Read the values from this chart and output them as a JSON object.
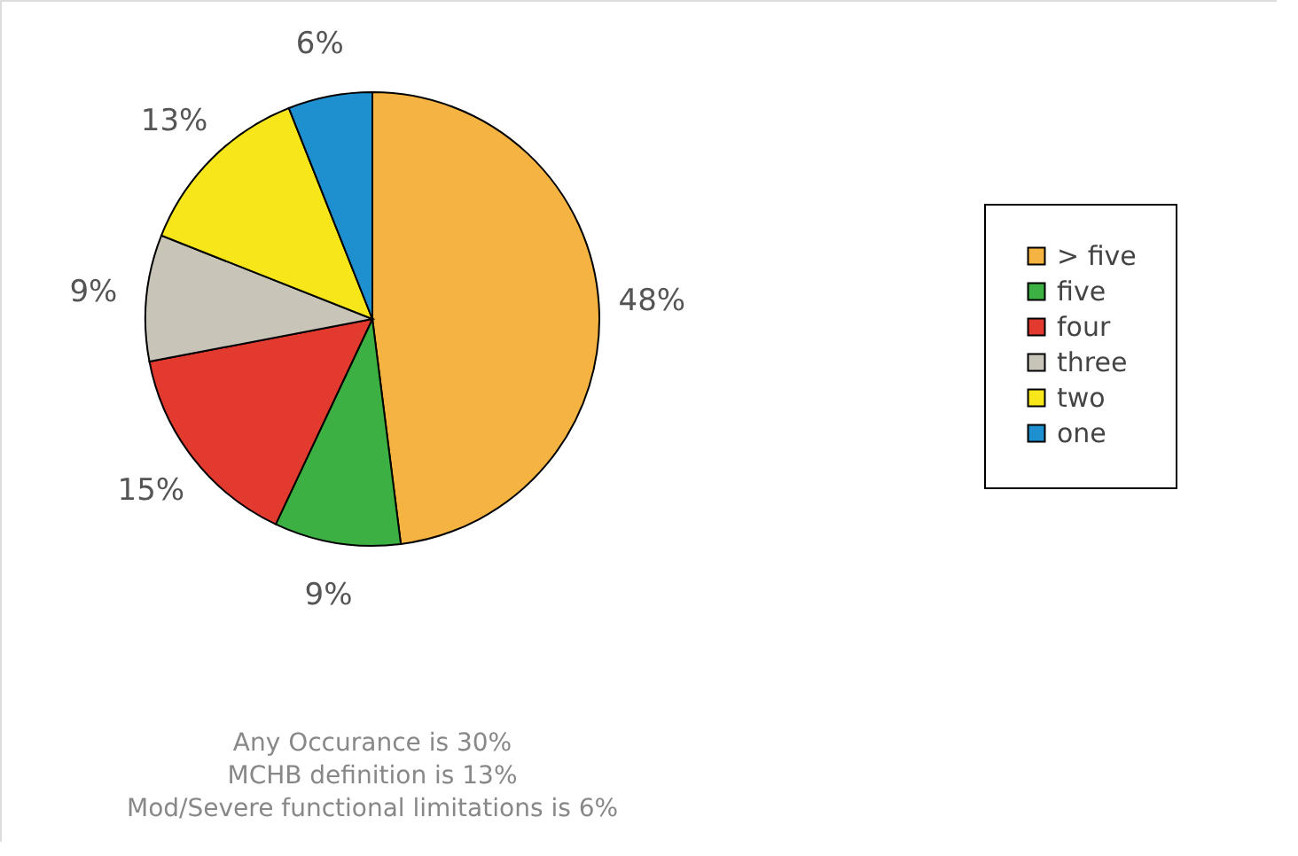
{
  "chart_data": {
    "type": "pie",
    "categories": [
      "> five",
      "five",
      "four",
      "three",
      "two",
      "one"
    ],
    "values": [
      48,
      9,
      15,
      9,
      13,
      6
    ],
    "colors": [
      "#f5b342",
      "#3cb043",
      "#e23a2e",
      "#c8c4b8",
      "#f7e61a",
      "#1e90d0"
    ],
    "value_labels": [
      "48%",
      "9%",
      "15%",
      "9%",
      "13%",
      "6%"
    ],
    "legend": "right",
    "annotations": [
      "Any Occurance   is 30%",
      "MCHB definition is 13%",
      "Mod/Severe functional  limitations is 6%"
    ]
  }
}
